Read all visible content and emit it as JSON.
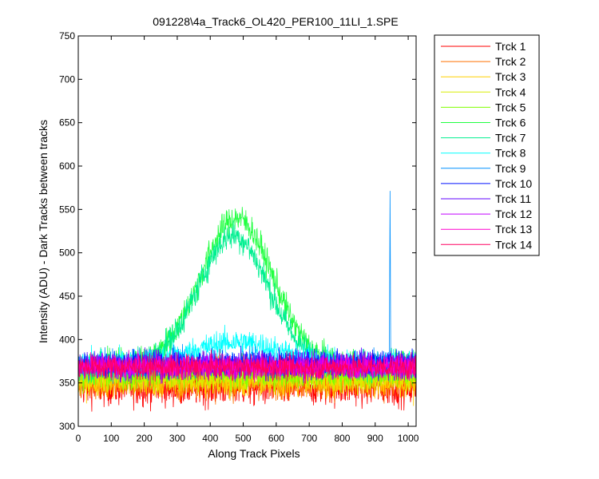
{
  "chart_data": {
    "type": "line",
    "title": "091228\\4a_Track6_OL420_PER100_11LI_1.SPE",
    "xlabel": "Along Track Pixels",
    "ylabel": "Intensity (ADU) - Dark Tracks between tracks",
    "xlim": [
      0,
      1024
    ],
    "ylim": [
      300,
      750
    ],
    "xticks": [
      0,
      100,
      200,
      300,
      400,
      500,
      600,
      700,
      800,
      900,
      1000
    ],
    "yticks": [
      300,
      350,
      400,
      450,
      500,
      550,
      600,
      650,
      700,
      750
    ],
    "grid": false,
    "legend_position": "outside-right",
    "series": [
      {
        "name": "Trck 1",
        "color": "#ff0000",
        "baseline": 345,
        "noise": 18
      },
      {
        "name": "Trck 2",
        "color": "#ff7000",
        "baseline": 350,
        "noise": 16
      },
      {
        "name": "Trck 3",
        "color": "#ffd000",
        "baseline": 352,
        "noise": 16
      },
      {
        "name": "Trck 4",
        "color": "#d8ee00",
        "baseline": 358,
        "noise": 15
      },
      {
        "name": "Trck 5",
        "color": "#80ff00",
        "baseline": 362,
        "noise": 15
      },
      {
        "name": "Trck 6",
        "color": "#20ff40",
        "baseline": 370,
        "noise": 14,
        "peak": {
          "center": 480,
          "width": 155,
          "height": 170
        }
      },
      {
        "name": "Trck 7",
        "color": "#00f090",
        "baseline": 370,
        "noise": 14,
        "peak": {
          "center": 470,
          "width": 150,
          "height": 150
        }
      },
      {
        "name": "Trck 8",
        "color": "#00ffff",
        "baseline": 372,
        "noise": 13,
        "peak": {
          "center": 480,
          "width": 180,
          "height": 25
        }
      },
      {
        "name": "Trck 9",
        "color": "#0090ff",
        "baseline": 372,
        "noise": 13,
        "spike": {
          "x": 945,
          "height": 195
        }
      },
      {
        "name": "Trck 10",
        "color": "#0010ff",
        "baseline": 372,
        "noise": 13
      },
      {
        "name": "Trck 11",
        "color": "#6000ff",
        "baseline": 370,
        "noise": 13
      },
      {
        "name": "Trck 12",
        "color": "#c000ff",
        "baseline": 370,
        "noise": 12
      },
      {
        "name": "Trck 13",
        "color": "#ff00d0",
        "baseline": 368,
        "noise": 12
      },
      {
        "name": "Trck 14",
        "color": "#ff0060",
        "baseline": 368,
        "noise": 12
      }
    ]
  }
}
